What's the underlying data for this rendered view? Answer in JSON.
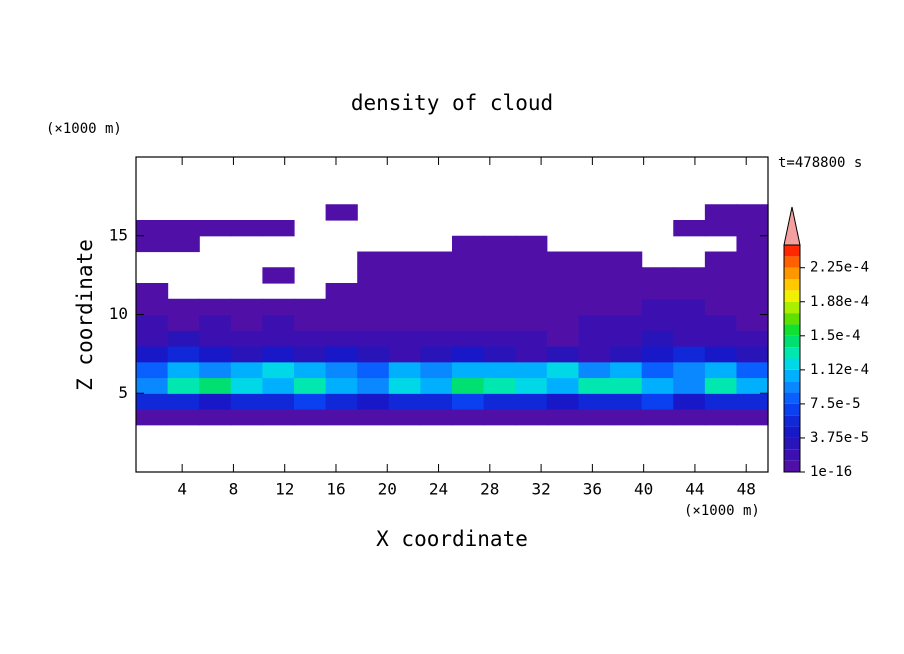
{
  "chart_data": {
    "type": "contour",
    "title": "density of cloud",
    "x_label": "X coordinate",
    "y_label": "Z coordinate",
    "x_unit": "(×1000 m)",
    "y_unit": "(×1000 m)",
    "time_label": "t=478800 s",
    "xlim": [
      0.4,
      49.7
    ],
    "ylim": [
      0,
      20
    ],
    "xticks": [
      4,
      8,
      12,
      16,
      20,
      24,
      28,
      32,
      36,
      40,
      44,
      48
    ],
    "yticks": [
      5,
      10,
      15
    ],
    "x": [
      1.63,
      4.1,
      6.56,
      9.03,
      11.49,
      13.96,
      16.42,
      18.89,
      21.35,
      23.82,
      26.28,
      28.75,
      31.21,
      33.68,
      36.15,
      38.61,
      41.08,
      43.54,
      46.01,
      48.47
    ],
    "y": [
      0.5,
      1.5,
      2.5,
      3.5,
      4.5,
      5.5,
      6.5,
      7.5,
      8.5,
      9.5,
      10.5,
      11.5,
      12.5,
      13.5,
      14.5,
      15.5,
      16.5,
      17.5,
      18.5,
      19.5
    ],
    "values": [
      [
        null,
        null,
        null,
        null,
        null,
        null,
        null,
        null,
        null,
        null,
        null,
        null,
        null,
        null,
        null,
        null,
        null,
        null,
        null,
        null
      ],
      [
        null,
        null,
        null,
        null,
        null,
        null,
        null,
        null,
        null,
        null,
        null,
        null,
        null,
        null,
        null,
        null,
        null,
        null,
        null,
        null
      ],
      [
        null,
        null,
        null,
        null,
        null,
        null,
        null,
        null,
        null,
        null,
        null,
        null,
        null,
        null,
        null,
        null,
        null,
        null,
        null,
        null
      ],
      [
        5e-06,
        5e-06,
        5e-06,
        5e-06,
        5e-06,
        5e-06,
        5e-06,
        5e-06,
        5e-06,
        5e-06,
        5e-06,
        5e-06,
        5e-06,
        5e-06,
        5e-06,
        5e-06,
        5e-06,
        5e-06,
        5e-06,
        5e-06
      ],
      [
        5e-05,
        6e-05,
        4e-05,
        6e-05,
        5e-05,
        7e-05,
        5e-05,
        4e-05,
        6e-05,
        5e-05,
        7e-05,
        6e-05,
        5e-05,
        4e-05,
        6e-05,
        5e-05,
        7e-05,
        4e-05,
        6e-05,
        5e-05
      ],
      [
        9e-05,
        0.00013,
        0.00014,
        0.00012,
        0.00011,
        0.00013,
        0.0001,
        9e-05,
        0.00012,
        0.00011,
        0.000145,
        0.00013,
        0.00012,
        0.00011,
        0.00013,
        0.000125,
        0.0001,
        9e-05,
        0.00013,
        0.0001
      ],
      [
        8e-05,
        0.0001,
        9e-05,
        0.00011,
        0.00012,
        0.0001,
        9e-05,
        8e-05,
        0.0001,
        9e-05,
        0.00011,
        0.0001,
        0.00011,
        0.00012,
        9e-05,
        0.00011,
        8e-05,
        9e-05,
        0.0001,
        8e-05
      ],
      [
        4e-05,
        5e-05,
        4e-05,
        3e-05,
        4e-05,
        3e-05,
        4e-05,
        3e-05,
        2e-05,
        3e-05,
        4e-05,
        3e-05,
        2e-05,
        3e-05,
        2e-05,
        3e-05,
        4e-05,
        5e-05,
        4e-05,
        3e-05
      ],
      [
        2e-05,
        3e-05,
        2e-05,
        2e-05,
        1.5e-05,
        2e-05,
        1.5e-05,
        2e-05,
        1.5e-05,
        2e-05,
        1.5e-05,
        2e-05,
        1.5e-05,
        1e-05,
        1.5e-05,
        2e-05,
        3e-05,
        2e-05,
        1.5e-05,
        2e-05
      ],
      [
        1.5e-05,
        1e-05,
        1.5e-05,
        1e-05,
        1.5e-05,
        1e-05,
        5e-06,
        1e-05,
        5e-06,
        1e-05,
        5e-06,
        1e-05,
        5e-06,
        5e-06,
        1.5e-05,
        1.5e-05,
        2e-05,
        1.5e-05,
        1.5e-05,
        1e-05
      ],
      [
        5e-06,
        5e-06,
        5e-06,
        5e-06,
        5e-06,
        5e-06,
        5e-06,
        5e-06,
        5e-06,
        5e-06,
        5e-06,
        5e-06,
        5e-06,
        5e-06,
        5e-06,
        5e-06,
        1.5e-05,
        1.5e-05,
        5e-06,
        5e-06
      ],
      [
        5e-06,
        null,
        null,
        null,
        null,
        null,
        5e-06,
        5e-06,
        5e-06,
        5e-06,
        5e-06,
        5e-06,
        5e-06,
        5e-06,
        5e-06,
        5e-06,
        5e-06,
        5e-06,
        5e-06,
        5e-06
      ],
      [
        null,
        null,
        null,
        null,
        5e-06,
        null,
        null,
        5e-06,
        5e-06,
        5e-06,
        5e-06,
        5e-06,
        5e-06,
        5e-06,
        5e-06,
        5e-06,
        5e-06,
        5e-06,
        5e-06,
        5e-06
      ],
      [
        null,
        null,
        null,
        null,
        null,
        null,
        null,
        5e-06,
        5e-06,
        5e-06,
        5e-06,
        5e-06,
        5e-06,
        5e-06,
        5e-06,
        5e-06,
        null,
        null,
        5e-06,
        5e-06
      ],
      [
        5e-06,
        5e-06,
        null,
        null,
        null,
        null,
        null,
        null,
        null,
        null,
        5e-06,
        5e-06,
        5e-06,
        null,
        null,
        null,
        null,
        null,
        null,
        5e-06
      ],
      [
        5e-06,
        5e-06,
        5e-06,
        5e-06,
        5e-06,
        null,
        null,
        null,
        null,
        null,
        null,
        null,
        null,
        null,
        null,
        null,
        null,
        5e-06,
        5e-06,
        5e-06
      ],
      [
        null,
        null,
        null,
        null,
        null,
        null,
        5e-06,
        null,
        null,
        null,
        null,
        null,
        null,
        null,
        null,
        null,
        null,
        null,
        5e-06,
        5e-06
      ],
      [
        null,
        null,
        null,
        null,
        null,
        null,
        null,
        null,
        null,
        null,
        null,
        null,
        null,
        null,
        null,
        null,
        null,
        null,
        null,
        null
      ],
      [
        null,
        null,
        null,
        null,
        null,
        null,
        null,
        null,
        null,
        null,
        null,
        null,
        null,
        null,
        null,
        null,
        null,
        null,
        null,
        null
      ],
      [
        null,
        null,
        null,
        null,
        null,
        null,
        null,
        null,
        null,
        null,
        null,
        null,
        null,
        null,
        null,
        null,
        null,
        null,
        null,
        null
      ]
    ],
    "levels": [
      1e-16,
      1.25e-05,
      2.5e-05,
      3.75e-05,
      5e-05,
      6.25e-05,
      7.5e-05,
      8.75e-05,
      0.0001,
      0.0001125,
      0.000125,
      0.0001375,
      0.00015,
      0.0001625,
      0.000175,
      0.0001875,
      0.0002,
      0.0002125,
      0.000225,
      0.0002375,
      0.00025
    ],
    "colors": [
      "#5010a8",
      "#3c10b0",
      "#2814b8",
      "#1818c8",
      "#1028d8",
      "#0a40f0",
      "#0a60ff",
      "#0a88ff",
      "#00b0ff",
      "#00d8e8",
      "#00e8b0",
      "#00e070",
      "#10e030",
      "#60e000",
      "#a8f000",
      "#f0f000",
      "#ffc800",
      "#ff9800",
      "#ff6000",
      "#ff2800"
    ],
    "extend_color": "#f4a0a0",
    "colorbar_ticks": [
      {
        "value": 1e-16,
        "label": "1e-16"
      },
      {
        "value": 3.75e-05,
        "label": "3.75e-5"
      },
      {
        "value": 7.5e-05,
        "label": "7.5e-5"
      },
      {
        "value": 0.0001125,
        "label": "1.12e-4"
      },
      {
        "value": 0.00015,
        "label": "1.5e-4"
      },
      {
        "value": 0.0001875,
        "label": "1.88e-4"
      },
      {
        "value": 0.000225,
        "label": "2.25e-4"
      }
    ]
  }
}
